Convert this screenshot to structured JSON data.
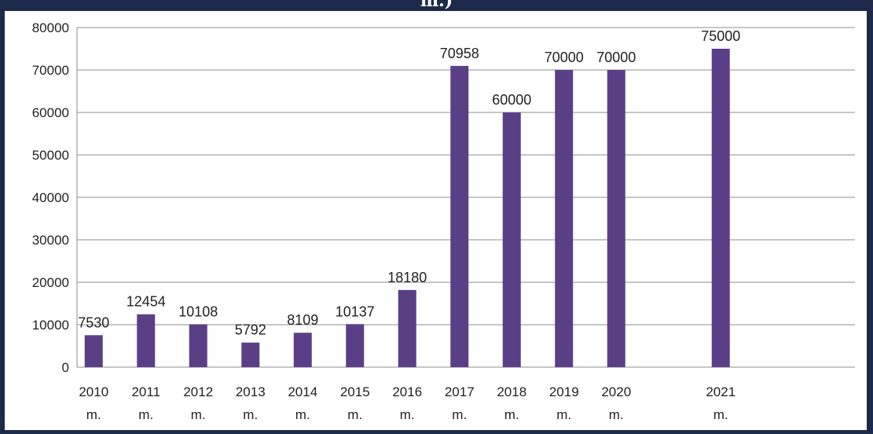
{
  "header": {
    "title_fragment": "m.)"
  },
  "colors": {
    "frame": "#1d2a4a",
    "background": "#ffffff",
    "bar": "#5b3f86",
    "gridline": "#8c8c8c",
    "text": "#222222"
  },
  "chart_data": {
    "type": "bar",
    "categories": [
      "2010 m.",
      "2011 m.",
      "2012 m.",
      "2013 m.",
      "2014 m.",
      "2015 m.",
      "2016 m.",
      "2017 m.",
      "2018 m.",
      "2019 m.",
      "2020 m.",
      "",
      "2021 m."
    ],
    "category_lines": [
      [
        "2010",
        "m."
      ],
      [
        "2011",
        "m."
      ],
      [
        "2012",
        "m."
      ],
      [
        "2013",
        "m."
      ],
      [
        "2014",
        "m."
      ],
      [
        "2015",
        "m."
      ],
      [
        "2016",
        "m."
      ],
      [
        "2017",
        "m."
      ],
      [
        "2018",
        "m."
      ],
      [
        "2019",
        "m."
      ],
      [
        "2020",
        "m."
      ],
      [
        "",
        ""
      ],
      [
        "2021",
        "m."
      ]
    ],
    "values": [
      7530,
      12454,
      10108,
      5792,
      8109,
      10137,
      18180,
      70958,
      60000,
      70000,
      70000,
      null,
      75000
    ],
    "data_labels": [
      "7530",
      "12454",
      "10108",
      "5792",
      "8109",
      "10137",
      "18180",
      "70958",
      "60000",
      "70000",
      "70000",
      "",
      "75000"
    ],
    "yticks": [
      0,
      10000,
      20000,
      30000,
      40000,
      50000,
      60000,
      70000,
      80000
    ],
    "ylim": [
      0,
      80000
    ],
    "grid": true,
    "legend": false
  }
}
